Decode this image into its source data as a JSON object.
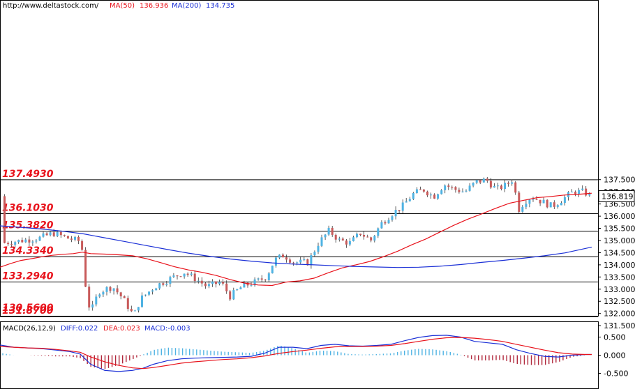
{
  "header": {
    "url": "http://www.deltastock.com/",
    "ma50_label": "MA(50)",
    "ma50_value": "136.936",
    "ma200_label": "MA(200)",
    "ma200_value": "134.735"
  },
  "macd_header": {
    "name": "MACD(26,12,9)",
    "diff": "DIFF:0.022",
    "dea": "DEA:0.023",
    "macd": "MACD:-0.003"
  },
  "current_price": "136.819",
  "colors": {
    "up": "#4fb3e3",
    "down": "#c85a5a",
    "ma50": "#e8121b",
    "ma200": "#1a2fd6",
    "level_text": "#e8121b",
    "diff": "#1a2fd6",
    "dea": "#e8121b",
    "hist_up": "#4fb3e3",
    "hist_down": "#b0283c"
  },
  "chart_data": [
    {
      "type": "candlestick",
      "title": "",
      "ylim": [
        131.4,
        137.8
      ],
      "y_ticks": [
        "137.500",
        "137.000",
        "136.500",
        "136.000",
        "135.500",
        "135.000",
        "134.500",
        "134.000",
        "133.500",
        "133.000",
        "132.500",
        "132.000",
        "131.500"
      ],
      "y_tick_values": [
        137.5,
        137.0,
        136.5,
        136.0,
        135.5,
        135.0,
        134.5,
        134.0,
        133.5,
        133.0,
        132.5,
        132.0,
        131.5
      ],
      "levels": [
        {
          "label": "137.4930",
          "value": 137.493,
          "line": true
        },
        {
          "label": "136.1030",
          "value": 136.103,
          "line": true
        },
        {
          "label": "135.3820",
          "value": 135.382,
          "line": true
        },
        {
          "label": "134.3340",
          "value": 134.334,
          "line": true
        },
        {
          "label": "133.2940",
          "value": 133.294,
          "line": true
        },
        {
          "label": "131.8700",
          "value": 131.87,
          "line": true
        },
        {
          "label": "130.5600",
          "value": 130.56,
          "line": false
        }
      ],
      "series": [
        {
          "name": "MA(50)",
          "x": [
            0,
            15,
            30,
            45,
            60,
            75,
            90,
            105,
            118,
            130,
            150,
            170,
            190,
            210,
            230,
            250,
            270,
            290,
            310,
            330,
            350,
            370,
            390,
            410,
            430,
            450,
            470,
            490,
            510,
            530,
            550,
            570,
            590,
            610,
            630,
            650,
            670,
            690,
            710,
            730,
            750,
            770,
            790,
            810,
            830,
            848
          ],
          "values": [
            133.9,
            134.05,
            134.18,
            134.25,
            134.33,
            134.39,
            134.43,
            134.46,
            134.52,
            134.46,
            134.44,
            134.41,
            134.37,
            134.25,
            134.09,
            133.92,
            133.79,
            133.69,
            133.56,
            133.39,
            133.25,
            133.17,
            133.15,
            133.29,
            133.34,
            133.45,
            133.67,
            133.87,
            134.0,
            134.14,
            134.34,
            134.56,
            134.82,
            135.06,
            135.34,
            135.62,
            135.87,
            136.09,
            136.32,
            136.53,
            136.65,
            136.76,
            136.81,
            136.87,
            136.9,
            136.94
          ]
        },
        {
          "name": "MA(200)",
          "x": [
            0,
            30,
            60,
            90,
            120,
            150,
            180,
            210,
            240,
            270,
            300,
            330,
            360,
            390,
            420,
            450,
            480,
            510,
            540,
            570,
            600,
            630,
            660,
            690,
            720,
            750,
            780,
            810,
            848
          ],
          "values": [
            135.6,
            135.54,
            135.47,
            135.38,
            135.27,
            135.11,
            134.95,
            134.79,
            134.63,
            134.48,
            134.35,
            134.24,
            134.15,
            134.08,
            134.03,
            134.0,
            133.96,
            133.93,
            133.91,
            133.89,
            133.9,
            133.94,
            134.01,
            134.1,
            134.18,
            134.27,
            134.37,
            134.49,
            134.73
          ]
        }
      ]
    },
    {
      "type": "macd",
      "title": "",
      "ylim": [
        -0.75,
        0.7
      ],
      "y_ticks": [
        "0.500",
        "0.000",
        "-0.500"
      ],
      "y_tick_values": [
        0.5,
        0.0,
        -0.5
      ],
      "series": [
        {
          "name": "DIFF",
          "x": [
            0,
            20,
            40,
            60,
            80,
            100,
            115,
            130,
            150,
            170,
            190,
            205,
            220,
            240,
            260,
            280,
            300,
            320,
            340,
            360,
            380,
            400,
            420,
            440,
            460,
            480,
            500,
            520,
            540,
            560,
            580,
            600,
            620,
            640,
            660,
            680,
            700,
            720,
            740,
            760,
            780,
            800,
            820,
            840,
            848
          ],
          "values": [
            0.28,
            0.22,
            0.2,
            0.18,
            0.14,
            0.1,
            0.03,
            -0.25,
            -0.42,
            -0.45,
            -0.42,
            -0.36,
            -0.25,
            -0.15,
            -0.1,
            -0.08,
            -0.07,
            -0.06,
            -0.05,
            -0.03,
            0.06,
            0.22,
            0.22,
            0.18,
            0.27,
            0.3,
            0.26,
            0.25,
            0.27,
            0.3,
            0.4,
            0.49,
            0.54,
            0.55,
            0.5,
            0.38,
            0.34,
            0.3,
            0.15,
            0.05,
            -0.03,
            -0.05,
            0.0,
            0.02,
            0.02
          ]
        },
        {
          "name": "DEA",
          "x": [
            0,
            20,
            40,
            60,
            80,
            100,
            115,
            130,
            150,
            170,
            190,
            205,
            220,
            240,
            260,
            280,
            300,
            320,
            340,
            360,
            380,
            400,
            420,
            440,
            460,
            480,
            500,
            520,
            540,
            560,
            580,
            600,
            620,
            640,
            660,
            680,
            700,
            720,
            740,
            760,
            780,
            800,
            820,
            840,
            848
          ],
          "values": [
            0.24,
            0.22,
            0.2,
            0.19,
            0.16,
            0.12,
            0.08,
            -0.05,
            -0.18,
            -0.28,
            -0.35,
            -0.37,
            -0.34,
            -0.28,
            -0.22,
            -0.18,
            -0.15,
            -0.12,
            -0.1,
            -0.07,
            -0.02,
            0.05,
            0.1,
            0.14,
            0.19,
            0.23,
            0.24,
            0.24,
            0.25,
            0.27,
            0.32,
            0.38,
            0.44,
            0.48,
            0.49,
            0.47,
            0.43,
            0.38,
            0.3,
            0.22,
            0.14,
            0.07,
            0.03,
            0.02,
            0.02
          ]
        }
      ]
    }
  ]
}
